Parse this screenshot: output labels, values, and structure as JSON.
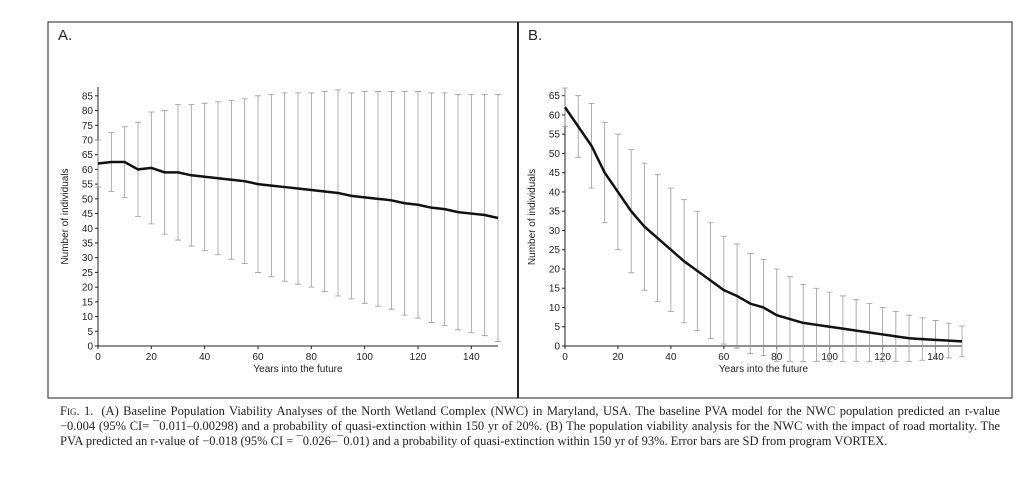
{
  "chart_data": [
    {
      "type": "line",
      "panel_label": "A.",
      "xlabel": "Years into the future",
      "ylabel": "Number of individuals",
      "x": [
        0,
        5,
        10,
        15,
        20,
        25,
        30,
        35,
        40,
        45,
        50,
        55,
        60,
        65,
        70,
        75,
        80,
        85,
        90,
        95,
        100,
        105,
        110,
        115,
        120,
        125,
        130,
        135,
        140,
        145,
        150
      ],
      "values": [
        62,
        62.5,
        62.5,
        60,
        60.5,
        59,
        59,
        58,
        57.5,
        57,
        56.5,
        56,
        55,
        54.5,
        54,
        53.5,
        53,
        52.5,
        52,
        51,
        50.5,
        50,
        49.5,
        48.5,
        48,
        47,
        46.5,
        45.5,
        45,
        44.5,
        43.5
      ],
      "errors": [
        8,
        10,
        12,
        16,
        19,
        21,
        23,
        24,
        25,
        26,
        27,
        28,
        30,
        31,
        32,
        32.5,
        33,
        34,
        35,
        35,
        36,
        36.5,
        37,
        38,
        38.5,
        39,
        39.5,
        40,
        40.5,
        41,
        42
      ],
      "color": "#111111",
      "error_color": "#999999",
      "xlim": [
        0,
        150
      ],
      "ylim": [
        0,
        88
      ],
      "xticks": [
        0,
        20,
        40,
        60,
        80,
        100,
        120,
        140
      ],
      "yticks": [
        0,
        5,
        10,
        15,
        20,
        25,
        30,
        35,
        40,
        45,
        50,
        55,
        60,
        65,
        70,
        75,
        80,
        85
      ]
    },
    {
      "type": "line",
      "panel_label": "B.",
      "xlabel": "Years into the future",
      "ylabel": "Number of individuals",
      "x": [
        0,
        5,
        10,
        15,
        20,
        25,
        30,
        35,
        40,
        45,
        50,
        55,
        60,
        65,
        70,
        75,
        80,
        85,
        90,
        95,
        100,
        105,
        110,
        115,
        120,
        125,
        130,
        135,
        140,
        145,
        150
      ],
      "values": [
        62,
        57,
        52,
        45,
        40,
        35,
        31,
        28,
        25,
        22,
        19.5,
        17,
        14.5,
        13,
        11,
        10,
        8,
        7,
        6,
        5.5,
        5,
        4.5,
        4,
        3.5,
        3,
        2.5,
        2,
        1.8,
        1.6,
        1.4,
        1.2
      ],
      "errors": [
        5,
        8,
        11,
        13,
        15,
        16,
        16.5,
        16.5,
        16,
        16,
        15.5,
        15,
        14,
        13.5,
        13,
        12.5,
        12,
        11,
        10,
        9.5,
        9,
        8.5,
        8,
        7.5,
        7,
        6.5,
        6,
        5.5,
        5,
        4.5,
        4
      ],
      "color": "#111111",
      "error_color": "#999999",
      "xlim": [
        0,
        150
      ],
      "ylim": [
        0,
        67
      ],
      "xticks": [
        0,
        20,
        40,
        60,
        80,
        100,
        120,
        140
      ],
      "yticks": [
        0,
        5,
        10,
        15,
        20,
        25,
        30,
        35,
        40,
        45,
        50,
        55,
        60,
        65
      ]
    }
  ],
  "caption": {
    "label": "Fig. 1.",
    "text": "(A) Baseline Population Viability Analyses of the North Wetland Complex (NWC) in Maryland, USA. The baseline PVA model for the NWC population predicted an r-value −0.004 (95% CI= ¯0.011–0.00298) and a probability of quasi-extinction within 150 yr of 20%. (B) The population viability analysis for the NWC with the impact of road mortality. The PVA predicted an r-value of −0.018 (95% CI = ¯0.026–¯0.01) and a probability of quasi-extinction within 150 yr of 93%. Error bars are SD from program VORTEX."
  }
}
